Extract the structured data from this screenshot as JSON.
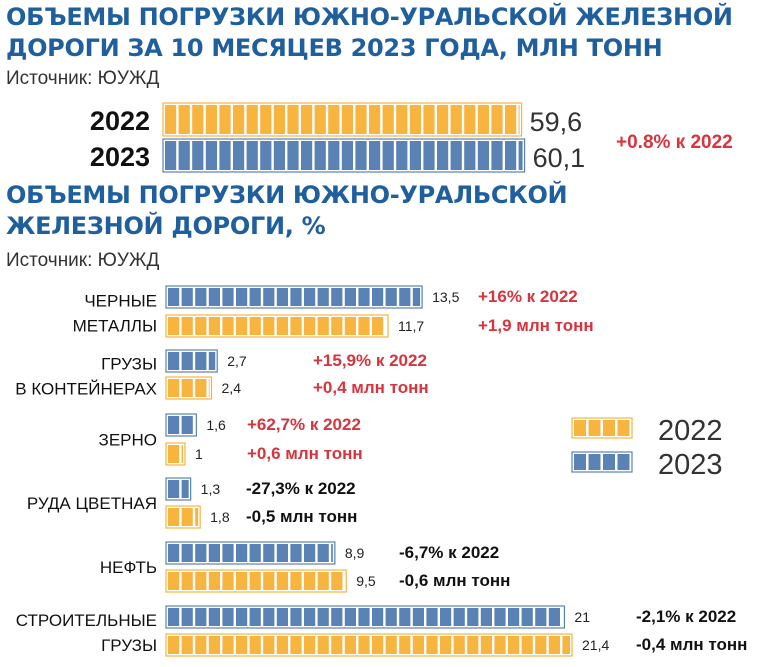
{
  "chart_data": [
    {
      "type": "bar",
      "title": "ОБЪЕМЫ ПОГРУЗКИ ЮЖНО-УРАЛЬСКОЙ ЖЕЛЕЗНОЙ ДОРОГИ ЗА 10 МЕСЯЦЕВ 2023 ГОДА, МЛН ТОНН",
      "title_lines": [
        "ОБЪЕМЫ ПОГРУЗКИ ЮЖНО-УРАЛЬСКОЙ ЖЕЛЕЗНОЙ",
        "ДОРОГИ ЗА 10 МЕСЯЦЕВ 2023 ГОДА, МЛН ТОНН"
      ],
      "source": "Источник: ЮУЖД",
      "categories": [
        "2022",
        "2023"
      ],
      "values": [
        59.6,
        60.1
      ],
      "value_labels": [
        "59,6",
        "60,1"
      ],
      "change_note": "+0.8% к 2022",
      "colors": [
        "#f7b43f",
        "#5a82b5"
      ]
    },
    {
      "type": "bar",
      "title": "ОБЪЕМЫ ПОГРУЗКИ ЮЖНО-УРАЛЬСКОЙ ЖЕЛЕЗНОЙ ДОРОГИ, %",
      "title_lines": [
        "ОБЪЕМЫ ПОГРУЗКИ ЮЖНО-УРАЛЬСКОЙ",
        "ЖЕЛЕЗНОЙ ДОРОГИ, %"
      ],
      "source": "Источник: ЮУЖД",
      "legend": [
        {
          "name": "2022",
          "color": "#f7b43f"
        },
        {
          "name": "2023",
          "color": "#5a82b5"
        }
      ],
      "legend_position": "right",
      "categories": [
        {
          "label_lines": [
            "ЧЕРНЫЕ",
            "МЕТАЛЛЫ"
          ],
          "v2023": 13.5,
          "v2022": 11.7,
          "label2023": "13,5",
          "label2022": "11,7",
          "note1": "+16% к 2022",
          "note2": "+1,9 млн тонн",
          "note_color": "#d8343e"
        },
        {
          "label_lines": [
            "ГРУЗЫ",
            "В КОНТЕЙНЕРАХ"
          ],
          "v2023": 2.7,
          "v2022": 2.4,
          "label2023": "2,7",
          "label2022": "2,4",
          "note1": "+15,9% к 2022",
          "note2": "+0,4 млн тонн",
          "note_color": "#d8343e"
        },
        {
          "label_lines": [
            "ЗЕРНО"
          ],
          "v2023": 1.6,
          "v2022": 1,
          "label2023": "1,6",
          "label2022": "1",
          "note1": "+62,7% к 2022",
          "note2": "+0,6 млн тонн",
          "note_color": "#d8343e"
        },
        {
          "label_lines": [
            "РУДА ЦВЕТНАЯ"
          ],
          "v2023": 1.3,
          "v2022": 1.8,
          "label2023": "1,3",
          "label2022": "1,8",
          "note1": "-27,3% к 2022",
          "note2": "-0,5 млн тонн",
          "note_color": "#111111"
        },
        {
          "label_lines": [
            "НЕФТЬ"
          ],
          "v2023": 8.9,
          "v2022": 9.5,
          "label2023": "8,9",
          "label2022": "9,5",
          "note1": "-6,7% к 2022",
          "note2": "-0,6 млн тонн",
          "note_color": "#111111"
        },
        {
          "label_lines": [
            "СТРОИТЕЛЬНЫЕ",
            "ГРУЗЫ"
          ],
          "v2023": 21,
          "v2022": 21.4,
          "label2023": "21",
          "label2022": "21,4",
          "note1": "-2,1% к 2022",
          "note2": "-0,4 млн тонн",
          "note_color": "#111111"
        }
      ]
    }
  ]
}
